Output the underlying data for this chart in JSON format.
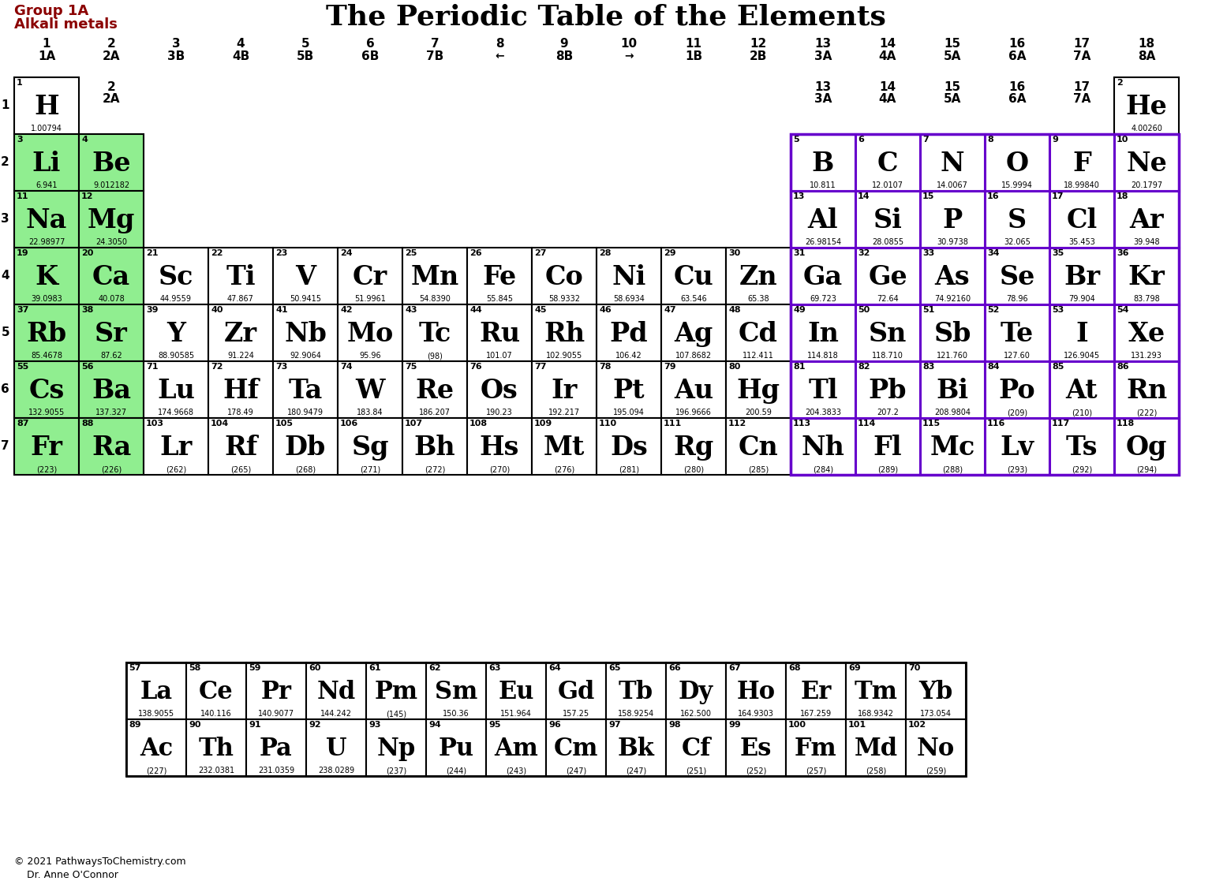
{
  "title": "The Periodic Table of the Elements",
  "subtitle_line1": "Group 1A",
  "subtitle_line2": "Alkali metals",
  "elements": [
    {
      "sym": "H",
      "num": 1,
      "mass": "1.00794",
      "col": 0,
      "row": 0,
      "color": "#ffffff"
    },
    {
      "sym": "He",
      "num": 2,
      "mass": "4.00260",
      "col": 17,
      "row": 0,
      "color": "#ffffff"
    },
    {
      "sym": "Li",
      "num": 3,
      "mass": "6.941",
      "col": 0,
      "row": 1,
      "color": "#90EE90"
    },
    {
      "sym": "Be",
      "num": 4,
      "mass": "9.012182",
      "col": 1,
      "row": 1,
      "color": "#90EE90"
    },
    {
      "sym": "B",
      "num": 5,
      "mass": "10.811",
      "col": 12,
      "row": 1,
      "color": "#ffffff"
    },
    {
      "sym": "C",
      "num": 6,
      "mass": "12.0107",
      "col": 13,
      "row": 1,
      "color": "#ffffff"
    },
    {
      "sym": "N",
      "num": 7,
      "mass": "14.0067",
      "col": 14,
      "row": 1,
      "color": "#ffffff"
    },
    {
      "sym": "O",
      "num": 8,
      "mass": "15.9994",
      "col": 15,
      "row": 1,
      "color": "#ffffff"
    },
    {
      "sym": "F",
      "num": 9,
      "mass": "18.99840",
      "col": 16,
      "row": 1,
      "color": "#ffffff"
    },
    {
      "sym": "Ne",
      "num": 10,
      "mass": "20.1797",
      "col": 17,
      "row": 1,
      "color": "#ffffff"
    },
    {
      "sym": "Na",
      "num": 11,
      "mass": "22.98977",
      "col": 0,
      "row": 2,
      "color": "#90EE90"
    },
    {
      "sym": "Mg",
      "num": 12,
      "mass": "24.3050",
      "col": 1,
      "row": 2,
      "color": "#90EE90"
    },
    {
      "sym": "Al",
      "num": 13,
      "mass": "26.98154",
      "col": 12,
      "row": 2,
      "color": "#ffffff"
    },
    {
      "sym": "Si",
      "num": 14,
      "mass": "28.0855",
      "col": 13,
      "row": 2,
      "color": "#ffffff"
    },
    {
      "sym": "P",
      "num": 15,
      "mass": "30.9738",
      "col": 14,
      "row": 2,
      "color": "#ffffff"
    },
    {
      "sym": "S",
      "num": 16,
      "mass": "32.065",
      "col": 15,
      "row": 2,
      "color": "#ffffff"
    },
    {
      "sym": "Cl",
      "num": 17,
      "mass": "35.453",
      "col": 16,
      "row": 2,
      "color": "#ffffff"
    },
    {
      "sym": "Ar",
      "num": 18,
      "mass": "39.948",
      "col": 17,
      "row": 2,
      "color": "#ffffff"
    },
    {
      "sym": "K",
      "num": 19,
      "mass": "39.0983",
      "col": 0,
      "row": 3,
      "color": "#90EE90"
    },
    {
      "sym": "Ca",
      "num": 20,
      "mass": "40.078",
      "col": 1,
      "row": 3,
      "color": "#90EE90"
    },
    {
      "sym": "Sc",
      "num": 21,
      "mass": "44.9559",
      "col": 2,
      "row": 3,
      "color": "#ffffff"
    },
    {
      "sym": "Ti",
      "num": 22,
      "mass": "47.867",
      "col": 3,
      "row": 3,
      "color": "#ffffff"
    },
    {
      "sym": "V",
      "num": 23,
      "mass": "50.9415",
      "col": 4,
      "row": 3,
      "color": "#ffffff"
    },
    {
      "sym": "Cr",
      "num": 24,
      "mass": "51.9961",
      "col": 5,
      "row": 3,
      "color": "#ffffff"
    },
    {
      "sym": "Mn",
      "num": 25,
      "mass": "54.8390",
      "col": 6,
      "row": 3,
      "color": "#ffffff"
    },
    {
      "sym": "Fe",
      "num": 26,
      "mass": "55.845",
      "col": 7,
      "row": 3,
      "color": "#ffffff"
    },
    {
      "sym": "Co",
      "num": 27,
      "mass": "58.9332",
      "col": 8,
      "row": 3,
      "color": "#ffffff"
    },
    {
      "sym": "Ni",
      "num": 28,
      "mass": "58.6934",
      "col": 9,
      "row": 3,
      "color": "#ffffff"
    },
    {
      "sym": "Cu",
      "num": 29,
      "mass": "63.546",
      "col": 10,
      "row": 3,
      "color": "#ffffff"
    },
    {
      "sym": "Zn",
      "num": 30,
      "mass": "65.38",
      "col": 11,
      "row": 3,
      "color": "#ffffff"
    },
    {
      "sym": "Ga",
      "num": 31,
      "mass": "69.723",
      "col": 12,
      "row": 3,
      "color": "#ffffff"
    },
    {
      "sym": "Ge",
      "num": 32,
      "mass": "72.64",
      "col": 13,
      "row": 3,
      "color": "#ffffff"
    },
    {
      "sym": "As",
      "num": 33,
      "mass": "74.92160",
      "col": 14,
      "row": 3,
      "color": "#ffffff"
    },
    {
      "sym": "Se",
      "num": 34,
      "mass": "78.96",
      "col": 15,
      "row": 3,
      "color": "#ffffff"
    },
    {
      "sym": "Br",
      "num": 35,
      "mass": "79.904",
      "col": 16,
      "row": 3,
      "color": "#ffffff"
    },
    {
      "sym": "Kr",
      "num": 36,
      "mass": "83.798",
      "col": 17,
      "row": 3,
      "color": "#ffffff"
    },
    {
      "sym": "Rb",
      "num": 37,
      "mass": "85.4678",
      "col": 0,
      "row": 4,
      "color": "#90EE90"
    },
    {
      "sym": "Sr",
      "num": 38,
      "mass": "87.62",
      "col": 1,
      "row": 4,
      "color": "#90EE90"
    },
    {
      "sym": "Y",
      "num": 39,
      "mass": "88.90585",
      "col": 2,
      "row": 4,
      "color": "#ffffff"
    },
    {
      "sym": "Zr",
      "num": 40,
      "mass": "91.224",
      "col": 3,
      "row": 4,
      "color": "#ffffff"
    },
    {
      "sym": "Nb",
      "num": 41,
      "mass": "92.9064",
      "col": 4,
      "row": 4,
      "color": "#ffffff"
    },
    {
      "sym": "Mo",
      "num": 42,
      "mass": "95.96",
      "col": 5,
      "row": 4,
      "color": "#ffffff"
    },
    {
      "sym": "Tc",
      "num": 43,
      "mass": "(98)",
      "col": 6,
      "row": 4,
      "color": "#ffffff"
    },
    {
      "sym": "Ru",
      "num": 44,
      "mass": "101.07",
      "col": 7,
      "row": 4,
      "color": "#ffffff"
    },
    {
      "sym": "Rh",
      "num": 45,
      "mass": "102.9055",
      "col": 8,
      "row": 4,
      "color": "#ffffff"
    },
    {
      "sym": "Pd",
      "num": 46,
      "mass": "106.42",
      "col": 9,
      "row": 4,
      "color": "#ffffff"
    },
    {
      "sym": "Ag",
      "num": 47,
      "mass": "107.8682",
      "col": 10,
      "row": 4,
      "color": "#ffffff"
    },
    {
      "sym": "Cd",
      "num": 48,
      "mass": "112.411",
      "col": 11,
      "row": 4,
      "color": "#ffffff"
    },
    {
      "sym": "In",
      "num": 49,
      "mass": "114.818",
      "col": 12,
      "row": 4,
      "color": "#ffffff"
    },
    {
      "sym": "Sn",
      "num": 50,
      "mass": "118.710",
      "col": 13,
      "row": 4,
      "color": "#ffffff"
    },
    {
      "sym": "Sb",
      "num": 51,
      "mass": "121.760",
      "col": 14,
      "row": 4,
      "color": "#ffffff"
    },
    {
      "sym": "Te",
      "num": 52,
      "mass": "127.60",
      "col": 15,
      "row": 4,
      "color": "#ffffff"
    },
    {
      "sym": "I",
      "num": 53,
      "mass": "126.9045",
      "col": 16,
      "row": 4,
      "color": "#ffffff"
    },
    {
      "sym": "Xe",
      "num": 54,
      "mass": "131.293",
      "col": 17,
      "row": 4,
      "color": "#ffffff"
    },
    {
      "sym": "Cs",
      "num": 55,
      "mass": "132.9055",
      "col": 0,
      "row": 5,
      "color": "#90EE90"
    },
    {
      "sym": "Ba",
      "num": 56,
      "mass": "137.327",
      "col": 1,
      "row": 5,
      "color": "#90EE90"
    },
    {
      "sym": "Lu",
      "num": 71,
      "mass": "174.9668",
      "col": 2,
      "row": 5,
      "color": "#ffffff"
    },
    {
      "sym": "Hf",
      "num": 72,
      "mass": "178.49",
      "col": 3,
      "row": 5,
      "color": "#ffffff"
    },
    {
      "sym": "Ta",
      "num": 73,
      "mass": "180.9479",
      "col": 4,
      "row": 5,
      "color": "#ffffff"
    },
    {
      "sym": "W",
      "num": 74,
      "mass": "183.84",
      "col": 5,
      "row": 5,
      "color": "#ffffff"
    },
    {
      "sym": "Re",
      "num": 75,
      "mass": "186.207",
      "col": 6,
      "row": 5,
      "color": "#ffffff"
    },
    {
      "sym": "Os",
      "num": 76,
      "mass": "190.23",
      "col": 7,
      "row": 5,
      "color": "#ffffff"
    },
    {
      "sym": "Ir",
      "num": 77,
      "mass": "192.217",
      "col": 8,
      "row": 5,
      "color": "#ffffff"
    },
    {
      "sym": "Pt",
      "num": 78,
      "mass": "195.094",
      "col": 9,
      "row": 5,
      "color": "#ffffff"
    },
    {
      "sym": "Au",
      "num": 79,
      "mass": "196.9666",
      "col": 10,
      "row": 5,
      "color": "#ffffff"
    },
    {
      "sym": "Hg",
      "num": 80,
      "mass": "200.59",
      "col": 11,
      "row": 5,
      "color": "#ffffff"
    },
    {
      "sym": "Tl",
      "num": 81,
      "mass": "204.3833",
      "col": 12,
      "row": 5,
      "color": "#ffffff"
    },
    {
      "sym": "Pb",
      "num": 82,
      "mass": "207.2",
      "col": 13,
      "row": 5,
      "color": "#ffffff"
    },
    {
      "sym": "Bi",
      "num": 83,
      "mass": "208.9804",
      "col": 14,
      "row": 5,
      "color": "#ffffff"
    },
    {
      "sym": "Po",
      "num": 84,
      "mass": "(209)",
      "col": 15,
      "row": 5,
      "color": "#ffffff"
    },
    {
      "sym": "At",
      "num": 85,
      "mass": "(210)",
      "col": 16,
      "row": 5,
      "color": "#ffffff"
    },
    {
      "sym": "Rn",
      "num": 86,
      "mass": "(222)",
      "col": 17,
      "row": 5,
      "color": "#ffffff"
    },
    {
      "sym": "Fr",
      "num": 87,
      "mass": "(223)",
      "col": 0,
      "row": 6,
      "color": "#90EE90"
    },
    {
      "sym": "Ra",
      "num": 88,
      "mass": "(226)",
      "col": 1,
      "row": 6,
      "color": "#90EE90"
    },
    {
      "sym": "Lr",
      "num": 103,
      "mass": "(262)",
      "col": 2,
      "row": 6,
      "color": "#ffffff"
    },
    {
      "sym": "Rf",
      "num": 104,
      "mass": "(265)",
      "col": 3,
      "row": 6,
      "color": "#ffffff"
    },
    {
      "sym": "Db",
      "num": 105,
      "mass": "(268)",
      "col": 4,
      "row": 6,
      "color": "#ffffff"
    },
    {
      "sym": "Sg",
      "num": 106,
      "mass": "(271)",
      "col": 5,
      "row": 6,
      "color": "#ffffff"
    },
    {
      "sym": "Bh",
      "num": 107,
      "mass": "(272)",
      "col": 6,
      "row": 6,
      "color": "#ffffff"
    },
    {
      "sym": "Hs",
      "num": 108,
      "mass": "(270)",
      "col": 7,
      "row": 6,
      "color": "#ffffff"
    },
    {
      "sym": "Mt",
      "num": 109,
      "mass": "(276)",
      "col": 8,
      "row": 6,
      "color": "#ffffff"
    },
    {
      "sym": "Ds",
      "num": 110,
      "mass": "(281)",
      "col": 9,
      "row": 6,
      "color": "#ffffff"
    },
    {
      "sym": "Rg",
      "num": 111,
      "mass": "(280)",
      "col": 10,
      "row": 6,
      "color": "#ffffff"
    },
    {
      "sym": "Cn",
      "num": 112,
      "mass": "(285)",
      "col": 11,
      "row": 6,
      "color": "#ffffff"
    },
    {
      "sym": "Nh",
      "num": 113,
      "mass": "(284)",
      "col": 12,
      "row": 6,
      "color": "#ffffff"
    },
    {
      "sym": "Fl",
      "num": 114,
      "mass": "(289)",
      "col": 13,
      "row": 6,
      "color": "#ffffff"
    },
    {
      "sym": "Mc",
      "num": 115,
      "mass": "(288)",
      "col": 14,
      "row": 6,
      "color": "#ffffff"
    },
    {
      "sym": "Lv",
      "num": 116,
      "mass": "(293)",
      "col": 15,
      "row": 6,
      "color": "#ffffff"
    },
    {
      "sym": "Ts",
      "num": 117,
      "mass": "(292)",
      "col": 16,
      "row": 6,
      "color": "#ffffff"
    },
    {
      "sym": "Og",
      "num": 118,
      "mass": "(294)",
      "col": 17,
      "row": 6,
      "color": "#ffffff"
    },
    {
      "sym": "La",
      "num": 57,
      "mass": "138.9055",
      "col": 0,
      "row": 0,
      "color": "#ffffff",
      "lan": true
    },
    {
      "sym": "Ce",
      "num": 58,
      "mass": "140.116",
      "col": 1,
      "row": 0,
      "color": "#ffffff",
      "lan": true
    },
    {
      "sym": "Pr",
      "num": 59,
      "mass": "140.9077",
      "col": 2,
      "row": 0,
      "color": "#ffffff",
      "lan": true
    },
    {
      "sym": "Nd",
      "num": 60,
      "mass": "144.242",
      "col": 3,
      "row": 0,
      "color": "#ffffff",
      "lan": true
    },
    {
      "sym": "Pm",
      "num": 61,
      "mass": "(145)",
      "col": 4,
      "row": 0,
      "color": "#ffffff",
      "lan": true
    },
    {
      "sym": "Sm",
      "num": 62,
      "mass": "150.36",
      "col": 5,
      "row": 0,
      "color": "#ffffff",
      "lan": true
    },
    {
      "sym": "Eu",
      "num": 63,
      "mass": "151.964",
      "col": 6,
      "row": 0,
      "color": "#ffffff",
      "lan": true
    },
    {
      "sym": "Gd",
      "num": 64,
      "mass": "157.25",
      "col": 7,
      "row": 0,
      "color": "#ffffff",
      "lan": true
    },
    {
      "sym": "Tb",
      "num": 65,
      "mass": "158.9254",
      "col": 8,
      "row": 0,
      "color": "#ffffff",
      "lan": true
    },
    {
      "sym": "Dy",
      "num": 66,
      "mass": "162.500",
      "col": 9,
      "row": 0,
      "color": "#ffffff",
      "lan": true
    },
    {
      "sym": "Ho",
      "num": 67,
      "mass": "164.9303",
      "col": 10,
      "row": 0,
      "color": "#ffffff",
      "lan": true
    },
    {
      "sym": "Er",
      "num": 68,
      "mass": "167.259",
      "col": 11,
      "row": 0,
      "color": "#ffffff",
      "lan": true
    },
    {
      "sym": "Tm",
      "num": 69,
      "mass": "168.9342",
      "col": 12,
      "row": 0,
      "color": "#ffffff",
      "lan": true
    },
    {
      "sym": "Yb",
      "num": 70,
      "mass": "173.054",
      "col": 13,
      "row": 0,
      "color": "#ffffff",
      "lan": true
    },
    {
      "sym": "Ac",
      "num": 89,
      "mass": "(227)",
      "col": 0,
      "row": 1,
      "color": "#ffffff",
      "lan": true
    },
    {
      "sym": "Th",
      "num": 90,
      "mass": "232.0381",
      "col": 1,
      "row": 1,
      "color": "#ffffff",
      "lan": true
    },
    {
      "sym": "Pa",
      "num": 91,
      "mass": "231.0359",
      "col": 2,
      "row": 1,
      "color": "#ffffff",
      "lan": true
    },
    {
      "sym": "U",
      "num": 92,
      "mass": "238.0289",
      "col": 3,
      "row": 1,
      "color": "#ffffff",
      "lan": true
    },
    {
      "sym": "Np",
      "num": 93,
      "mass": "(237)",
      "col": 4,
      "row": 1,
      "color": "#ffffff",
      "lan": true
    },
    {
      "sym": "Pu",
      "num": 94,
      "mass": "(244)",
      "col": 5,
      "row": 1,
      "color": "#ffffff",
      "lan": true
    },
    {
      "sym": "Am",
      "num": 95,
      "mass": "(243)",
      "col": 6,
      "row": 1,
      "color": "#ffffff",
      "lan": true
    },
    {
      "sym": "Cm",
      "num": 96,
      "mass": "(247)",
      "col": 7,
      "row": 1,
      "color": "#ffffff",
      "lan": true
    },
    {
      "sym": "Bk",
      "num": 97,
      "mass": "(247)",
      "col": 8,
      "row": 1,
      "color": "#ffffff",
      "lan": true
    },
    {
      "sym": "Cf",
      "num": 98,
      "mass": "(251)",
      "col": 9,
      "row": 1,
      "color": "#ffffff",
      "lan": true
    },
    {
      "sym": "Es",
      "num": 99,
      "mass": "(252)",
      "col": 10,
      "row": 1,
      "color": "#ffffff",
      "lan": true
    },
    {
      "sym": "Fm",
      "num": 100,
      "mass": "(257)",
      "col": 11,
      "row": 1,
      "color": "#ffffff",
      "lan": true
    },
    {
      "sym": "Md",
      "num": 101,
      "mass": "(258)",
      "col": 12,
      "row": 1,
      "color": "#ffffff",
      "lan": true
    },
    {
      "sym": "No",
      "num": 102,
      "mass": "(259)",
      "col": 13,
      "row": 1,
      "color": "#ffffff",
      "lan": true
    }
  ],
  "purple_nums": [
    5,
    6,
    7,
    8,
    9,
    10,
    13,
    14,
    15,
    16,
    17,
    18,
    31,
    32,
    33,
    34,
    35,
    36,
    49,
    50,
    51,
    52,
    53,
    54,
    81,
    82,
    83,
    84,
    85,
    86,
    113,
    114,
    115,
    116,
    117,
    118
  ],
  "alkali_color": "#90EE90",
  "purple_color": "#6600CC",
  "title_color": "#000000",
  "label_color": "#8B0000"
}
